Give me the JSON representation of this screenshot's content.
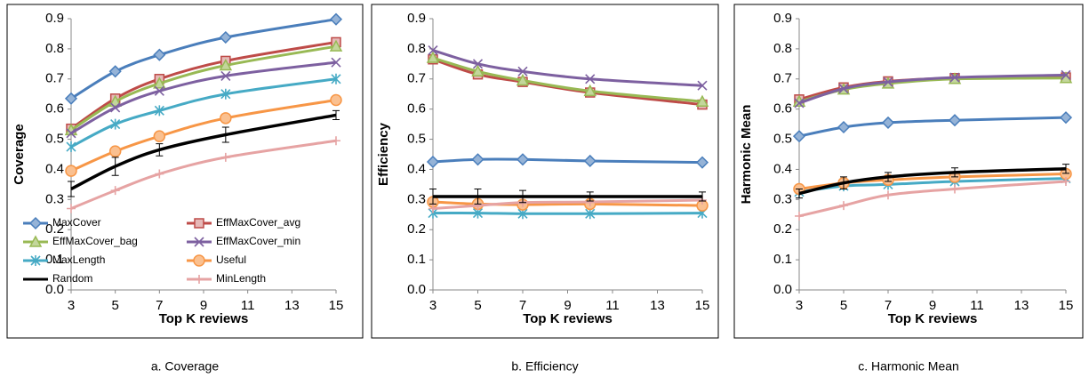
{
  "chart_data": [
    {
      "type": "line",
      "caption": "a. Coverage",
      "xlabel": "Top K reviews",
      "ylabel": "Coverage",
      "x": [
        3,
        5,
        7,
        10,
        15
      ],
      "xlim": [
        3,
        15
      ],
      "xticks": [
        3,
        5,
        7,
        9,
        11,
        13,
        15
      ],
      "ylim": [
        0,
        0.9
      ],
      "yticks": [
        {
          "value": 0,
          "label": "0.0"
        },
        0.1,
        0.2,
        0.3,
        0.4,
        0.5,
        0.6,
        0.7,
        0.8,
        0.9
      ],
      "legend": "lower left",
      "series": [
        {
          "name": "MaxCover",
          "color": "#4a7ebb",
          "marker": "diamond",
          "values": [
            0.635,
            0.725,
            0.78,
            0.838,
            0.898
          ]
        },
        {
          "name": "EffMaxCover_avg",
          "color": "#be4b48",
          "marker": "square",
          "values": [
            0.535,
            0.635,
            0.7,
            0.76,
            0.822
          ]
        },
        {
          "name": "EffMaxCover_bag",
          "color": "#98b954",
          "marker": "triangle",
          "values": [
            0.53,
            0.625,
            0.685,
            0.745,
            0.808
          ]
        },
        {
          "name": "EffMaxCover_min",
          "color": "#7d60a0",
          "marker": "x",
          "values": [
            0.52,
            0.605,
            0.66,
            0.71,
            0.755
          ]
        },
        {
          "name": "MaxLength",
          "color": "#46aac5",
          "marker": "star",
          "values": [
            0.475,
            0.55,
            0.595,
            0.65,
            0.7
          ]
        },
        {
          "name": "Useful",
          "color": "#f79646",
          "marker": "circle",
          "values": [
            0.395,
            0.46,
            0.51,
            0.57,
            0.63
          ]
        },
        {
          "name": "Random",
          "color": "#000000",
          "marker": "none",
          "values": [
            0.335,
            0.41,
            0.465,
            0.515,
            0.58
          ],
          "errors": [
            0.025,
            0.03,
            0.02,
            0.025,
            0.015
          ]
        },
        {
          "name": "MinLength",
          "color": "#e6a3a3",
          "marker": "plus",
          "values": [
            0.27,
            0.33,
            0.385,
            0.44,
            0.495
          ]
        }
      ]
    },
    {
      "type": "line",
      "caption": "b. Efficiency",
      "xlabel": "Top K reviews",
      "ylabel": "Efficiency",
      "x": [
        3,
        5,
        7,
        10,
        15
      ],
      "xlim": [
        3,
        15
      ],
      "xticks": [
        3,
        5,
        7,
        9,
        11,
        13,
        15
      ],
      "ylim": [
        0,
        0.9
      ],
      "yticks": [
        {
          "value": 0,
          "label": "0.0"
        },
        0.1,
        0.2,
        0.3,
        0.4,
        0.5,
        0.6,
        0.7,
        0.8,
        0.9
      ],
      "series": [
        {
          "color": "#4a7ebb",
          "marker": "diamond",
          "values": [
            0.425,
            0.433,
            0.433,
            0.428,
            0.423
          ]
        },
        {
          "color": "#be4b48",
          "marker": "square",
          "values": [
            0.765,
            0.715,
            0.69,
            0.655,
            0.615
          ]
        },
        {
          "color": "#98b954",
          "marker": "triangle",
          "values": [
            0.77,
            0.725,
            0.695,
            0.66,
            0.625
          ]
        },
        {
          "color": "#7d60a0",
          "marker": "x",
          "values": [
            0.795,
            0.75,
            0.725,
            0.7,
            0.678
          ]
        },
        {
          "color": "#46aac5",
          "marker": "star",
          "values": [
            0.255,
            0.255,
            0.253,
            0.253,
            0.255
          ]
        },
        {
          "color": "#f79646",
          "marker": "circle",
          "values": [
            0.292,
            0.285,
            0.283,
            0.285,
            0.28
          ]
        },
        {
          "color": "#000000",
          "marker": "none",
          "values": [
            0.31,
            0.31,
            0.31,
            0.31,
            0.31
          ],
          "errors": [
            0.025,
            0.025,
            0.02,
            0.015,
            0.015
          ]
        },
        {
          "color": "#e6a3a3",
          "marker": "plus",
          "values": [
            0.27,
            0.28,
            0.29,
            0.292,
            0.298
          ]
        }
      ]
    },
    {
      "type": "line",
      "caption": "c. Harmonic Mean",
      "xlabel": "Top K reviews",
      "ylabel": "Harmonic Mean",
      "x": [
        3,
        5,
        7,
        10,
        15
      ],
      "xlim": [
        3,
        15
      ],
      "xticks": [
        3,
        5,
        7,
        9,
        11,
        13,
        15
      ],
      "ylim": [
        0,
        0.9
      ],
      "yticks": [
        {
          "value": 0,
          "label": "0.0"
        },
        0.1,
        0.2,
        0.3,
        0.4,
        0.5,
        0.6,
        0.7,
        0.8,
        0.9
      ],
      "series": [
        {
          "color": "#4a7ebb",
          "marker": "diamond",
          "values": [
            0.51,
            0.54,
            0.555,
            0.563,
            0.572
          ]
        },
        {
          "color": "#be4b48",
          "marker": "square",
          "values": [
            0.632,
            0.672,
            0.692,
            0.703,
            0.705
          ]
        },
        {
          "color": "#98b954",
          "marker": "triangle",
          "values": [
            0.625,
            0.665,
            0.685,
            0.7,
            0.703
          ]
        },
        {
          "color": "#7d60a0",
          "marker": "x",
          "values": [
            0.62,
            0.668,
            0.69,
            0.705,
            0.713
          ]
        },
        {
          "color": "#46aac5",
          "marker": "star",
          "values": [
            0.325,
            0.345,
            0.35,
            0.36,
            0.37
          ]
        },
        {
          "color": "#f79646",
          "marker": "circle",
          "values": [
            0.335,
            0.355,
            0.365,
            0.375,
            0.385
          ]
        },
        {
          "color": "#000000",
          "marker": "none",
          "values": [
            0.32,
            0.355,
            0.375,
            0.39,
            0.402
          ],
          "errors": [
            0.015,
            0.02,
            0.015,
            0.015,
            0.015
          ]
        },
        {
          "color": "#e6a3a3",
          "marker": "plus",
          "values": [
            0.245,
            0.28,
            0.315,
            0.335,
            0.36
          ]
        }
      ]
    }
  ]
}
